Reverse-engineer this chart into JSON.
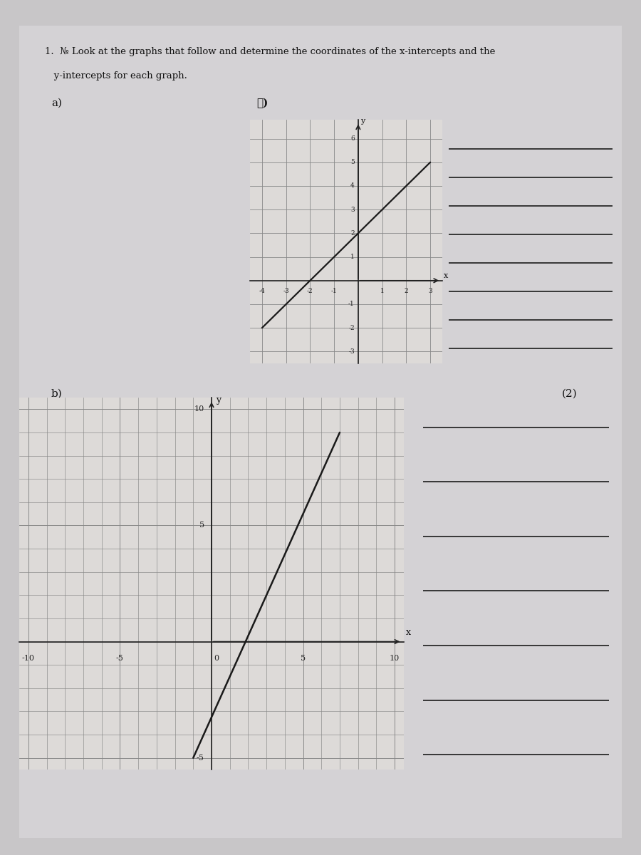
{
  "bg_color": "#c8c6c8",
  "paper_color": "#d4d2d5",
  "title_line1": "1.  № Look at the graphs that follow and determine the coordinates of the x-intercepts and the",
  "title_line2": "   y-intercepts for each graph.",
  "label_a": "a)",
  "label_b_circle": "Ⓑ)",
  "label_b": "b)",
  "answer_label": "(2)",
  "graph_top": {
    "xlim": [
      -4.5,
      3.5
    ],
    "ylim": [
      -3.5,
      6.8
    ],
    "xticks": [
      -4,
      -3,
      -2,
      -1,
      1,
      2,
      3
    ],
    "yticks": [
      -3,
      -2,
      -1,
      1,
      2,
      3,
      4,
      5,
      6
    ],
    "xlabel": "x",
    "ylabel": "y",
    "line_x1": -4.0,
    "line_y1": -2.0,
    "line_x2": 3.0,
    "line_y2": 5.0,
    "line_color": "#1a1a1a",
    "grid_color": "#888888",
    "bg_color": "#dddad8",
    "line_width": 1.6
  },
  "graph_bottom": {
    "xlim": [
      -10.5,
      10.5
    ],
    "ylim": [
      -5.5,
      10.5
    ],
    "xtick_major": [
      -10,
      -5,
      5,
      10
    ],
    "ytick_major": [
      -5,
      5,
      10
    ],
    "xlabel": "x",
    "ylabel": "y",
    "line_x1": -1.0,
    "line_y1": -5.0,
    "line_x2": 7.0,
    "line_y2": 9.0,
    "line_color": "#1a1a1a",
    "grid_color": "#888888",
    "bg_color": "#dddad8",
    "line_width": 1.8
  },
  "answer_lines_top": {
    "color": "#2a2a2a",
    "count": 8,
    "line_width": 1.3
  },
  "answer_lines_bottom": {
    "color": "#2a2a2a",
    "count": 7,
    "line_width": 1.3
  }
}
